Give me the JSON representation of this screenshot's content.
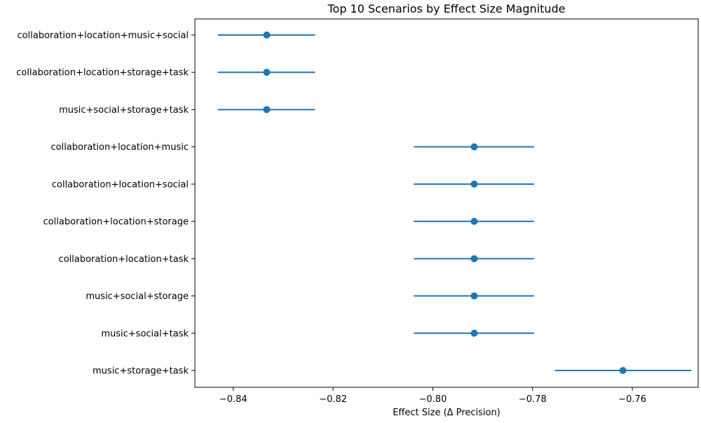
{
  "chart_data": {
    "type": "scatter",
    "title": "Top 10 Scenarios by Effect Size Magnitude",
    "xlabel": "Effect Size (Δ Precision)",
    "ylabel": "",
    "xlim": [
      -0.8477,
      -0.7468
    ],
    "xticks": [
      -0.84,
      -0.82,
      -0.8,
      -0.78,
      -0.76
    ],
    "xtick_labels": [
      "−0.84",
      "−0.82",
      "−0.80",
      "−0.78",
      "−0.76"
    ],
    "grid": false,
    "color": "#1f77b4",
    "categories": [
      "collaboration+location+music+social",
      "collaboration+location+storage+task",
      "music+social+storage+task",
      "collaboration+location+music",
      "collaboration+location+social",
      "collaboration+location+storage",
      "collaboration+location+task",
      "music+social+storage",
      "music+social+task",
      "music+storage+task"
    ],
    "values": [
      -0.8333,
      -0.8333,
      -0.8333,
      -0.7917,
      -0.7917,
      -0.7917,
      -0.7917,
      -0.7917,
      -0.7917,
      -0.7619
    ],
    "ci_low": [
      -0.8431,
      -0.8431,
      -0.8431,
      -0.8038,
      -0.8038,
      -0.8038,
      -0.8038,
      -0.8038,
      -0.8038,
      -0.7755
    ],
    "ci_high": [
      -0.8236,
      -0.8236,
      -0.8236,
      -0.7797,
      -0.7797,
      -0.7797,
      -0.7797,
      -0.7797,
      -0.7797,
      -0.7482
    ]
  }
}
